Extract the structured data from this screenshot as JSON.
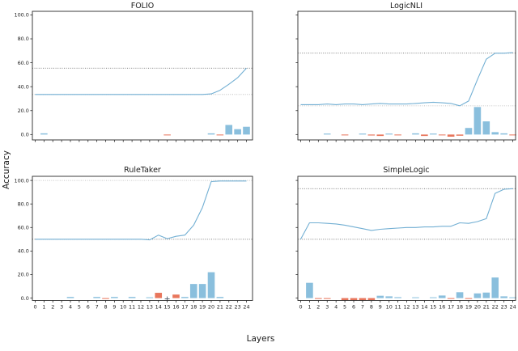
{
  "figure": {
    "ylabel": "Accuracy",
    "xlabel": "Layers",
    "y_tick_labels": [
      "0.0",
      "20.0",
      "40.0",
      "60.0",
      "80.0",
      "100.0"
    ],
    "x_tick_labels": [
      "0",
      "1",
      "2",
      "3",
      "4",
      "5",
      "6",
      "7",
      "8",
      "9",
      "10",
      "11",
      "12",
      "13",
      "14",
      "15",
      "16",
      "17",
      "18",
      "19",
      "20",
      "21",
      "22",
      "23",
      "24"
    ],
    "colors": {
      "line": "#72afd3",
      "bar_blue": "#8abfdd",
      "bar_red": "#e8765c",
      "ref_dark": "#555555",
      "ref_light": "#b3b3b3",
      "marker": "#4a5a6a",
      "spine": "#2a2a2a",
      "text": "#1a1a1a"
    }
  },
  "chart_data": [
    {
      "type": "line+bar",
      "title": "FOLIO",
      "x": [
        0,
        1,
        2,
        3,
        4,
        5,
        6,
        7,
        8,
        9,
        10,
        11,
        12,
        13,
        14,
        15,
        16,
        17,
        18,
        19,
        20,
        21,
        22,
        23,
        24
      ],
      "line_values": [
        33.5,
        33.5,
        33.5,
        33.5,
        33.5,
        33.5,
        33.5,
        33.5,
        33.5,
        33.5,
        33.5,
        33.5,
        33.5,
        33.5,
        33.5,
        33.5,
        33.5,
        33.5,
        33.5,
        33.5,
        34,
        37,
        42,
        47.5,
        55.5
      ],
      "ref_lines": [
        {
          "value": 55.5,
          "shade": "dark"
        },
        {
          "value": 33.5,
          "shade": "light"
        }
      ],
      "bars": [
        {
          "layer": 1,
          "value": 1,
          "color": "blue"
        },
        {
          "layer": 15,
          "value": -0.7,
          "color": "red"
        },
        {
          "layer": 20,
          "value": 1,
          "color": "blue"
        },
        {
          "layer": 21,
          "value": -0.7,
          "color": "red"
        },
        {
          "layer": 22,
          "value": 8,
          "color": "blue"
        },
        {
          "layer": 23,
          "value": 4.5,
          "color": "blue"
        },
        {
          "layer": 24,
          "value": 6.5,
          "color": "blue"
        }
      ],
      "ylim": [
        -4.5,
        103
      ],
      "grid": false
    },
    {
      "type": "line+bar",
      "title": "LogicNLI",
      "x": [
        0,
        1,
        2,
        3,
        4,
        5,
        6,
        7,
        8,
        9,
        10,
        11,
        12,
        13,
        14,
        15,
        16,
        17,
        18,
        19,
        20,
        21,
        22,
        23,
        24
      ],
      "line_values": [
        25,
        25,
        25,
        25.5,
        25,
        25.5,
        25.5,
        25,
        25.5,
        26,
        25.5,
        25.5,
        25.5,
        26,
        26.5,
        27,
        26.5,
        26,
        24,
        28,
        46,
        63,
        68,
        68,
        68.5
      ],
      "ref_lines": [
        {
          "value": 68,
          "shade": "dark"
        },
        {
          "value": 24,
          "shade": "light"
        }
      ],
      "bars": [
        {
          "layer": 3,
          "value": 0.8,
          "color": "blue"
        },
        {
          "layer": 5,
          "value": -0.7,
          "color": "red"
        },
        {
          "layer": 7,
          "value": 0.8,
          "color": "blue"
        },
        {
          "layer": 8,
          "value": -0.8,
          "color": "red"
        },
        {
          "layer": 9,
          "value": -1.2,
          "color": "red"
        },
        {
          "layer": 10,
          "value": 0.8,
          "color": "blue"
        },
        {
          "layer": 11,
          "value": -0.7,
          "color": "red"
        },
        {
          "layer": 13,
          "value": 1,
          "color": "blue"
        },
        {
          "layer": 14,
          "value": -1.2,
          "color": "red"
        },
        {
          "layer": 15,
          "value": 0.8,
          "color": "blue"
        },
        {
          "layer": 16,
          "value": -0.7,
          "color": "red"
        },
        {
          "layer": 17,
          "value": -1.8,
          "color": "red"
        },
        {
          "layer": 18,
          "value": -1,
          "color": "red"
        },
        {
          "layer": 19,
          "value": 5.5,
          "color": "blue"
        },
        {
          "layer": 20,
          "value": 23,
          "color": "blue"
        },
        {
          "layer": 21,
          "value": 11,
          "color": "blue"
        },
        {
          "layer": 22,
          "value": 2,
          "color": "blue"
        },
        {
          "layer": 23,
          "value": 1,
          "color": "blue"
        },
        {
          "layer": 24,
          "value": -0.7,
          "color": "red"
        }
      ],
      "ylim": [
        -4.5,
        103
      ],
      "grid": false
    },
    {
      "type": "line+bar",
      "title": "RuleTaker",
      "x": [
        0,
        1,
        2,
        3,
        4,
        5,
        6,
        7,
        8,
        9,
        10,
        11,
        12,
        13,
        14,
        15,
        16,
        17,
        18,
        19,
        20,
        21,
        22,
        23,
        24
      ],
      "line_values": [
        50,
        50,
        50,
        50,
        50,
        50,
        50,
        50,
        50,
        50,
        50,
        50,
        50,
        49.5,
        53.5,
        50.5,
        52.5,
        53.5,
        62,
        77,
        99,
        99.5,
        99.5,
        99.5,
        99.5
      ],
      "ref_lines": [
        {
          "value": 50,
          "shade": "dark"
        },
        {
          "value": 100,
          "shade": "light"
        }
      ],
      "bars": [
        {
          "layer": 4,
          "value": 1,
          "color": "blue"
        },
        {
          "layer": 7,
          "value": 1,
          "color": "blue"
        },
        {
          "layer": 8,
          "value": -0.7,
          "color": "red"
        },
        {
          "layer": 9,
          "value": 1,
          "color": "blue"
        },
        {
          "layer": 11,
          "value": 1,
          "color": "blue"
        },
        {
          "layer": 13,
          "value": 0.7,
          "color": "blue"
        },
        {
          "layer": 14,
          "value": 4.5,
          "color": "red"
        },
        {
          "layer": 15,
          "value": 0,
          "color": "marker"
        },
        {
          "layer": 16,
          "value": 3,
          "color": "red"
        },
        {
          "layer": 17,
          "value": 1,
          "color": "blue"
        },
        {
          "layer": 18,
          "value": 12,
          "color": "blue"
        },
        {
          "layer": 19,
          "value": 12,
          "color": "blue"
        },
        {
          "layer": 20,
          "value": 22,
          "color": "blue"
        },
        {
          "layer": 21,
          "value": 1,
          "color": "blue"
        }
      ],
      "ylim": [
        -2,
        103.5
      ],
      "grid": false
    },
    {
      "type": "line+bar",
      "title": "SimpleLogic",
      "x": [
        0,
        1,
        2,
        3,
        4,
        5,
        6,
        7,
        8,
        9,
        10,
        11,
        12,
        13,
        14,
        15,
        16,
        17,
        18,
        19,
        20,
        21,
        22,
        23,
        24
      ],
      "line_values": [
        50,
        64,
        64,
        63.5,
        63,
        62,
        60.5,
        59,
        57.5,
        58.5,
        59,
        59.5,
        60,
        60,
        60.5,
        60.5,
        61,
        61,
        64,
        63.5,
        65,
        67.5,
        89,
        92.5,
        93
      ],
      "ref_lines": [
        {
          "value": 93,
          "shade": "dark"
        },
        {
          "value": 50,
          "shade": "dark"
        }
      ],
      "bars": [
        {
          "layer": 1,
          "value": 13,
          "color": "blue"
        },
        {
          "layer": 2,
          "value": -0.7,
          "color": "red"
        },
        {
          "layer": 3,
          "value": -0.7,
          "color": "red"
        },
        {
          "layer": 5,
          "value": -2,
          "color": "red"
        },
        {
          "layer": 6,
          "value": -2,
          "color": "red"
        },
        {
          "layer": 7,
          "value": -2,
          "color": "red"
        },
        {
          "layer": 8,
          "value": -1.8,
          "color": "red"
        },
        {
          "layer": 9,
          "value": 2,
          "color": "blue"
        },
        {
          "layer": 10,
          "value": 1.5,
          "color": "blue"
        },
        {
          "layer": 11,
          "value": 0.8,
          "color": "blue"
        },
        {
          "layer": 13,
          "value": 0.6,
          "color": "blue"
        },
        {
          "layer": 15,
          "value": 0.6,
          "color": "blue"
        },
        {
          "layer": 16,
          "value": 2.2,
          "color": "blue"
        },
        {
          "layer": 17,
          "value": -0.6,
          "color": "red"
        },
        {
          "layer": 18,
          "value": 5,
          "color": "blue"
        },
        {
          "layer": 19,
          "value": -0.6,
          "color": "red"
        },
        {
          "layer": 20,
          "value": 4,
          "color": "blue"
        },
        {
          "layer": 21,
          "value": 4.7,
          "color": "blue"
        },
        {
          "layer": 22,
          "value": 17.5,
          "color": "blue"
        },
        {
          "layer": 23,
          "value": 1.5,
          "color": "blue"
        },
        {
          "layer": 24,
          "value": 0.7,
          "color": "blue"
        }
      ],
      "ylim": [
        -2,
        103.5
      ],
      "grid": false
    }
  ]
}
